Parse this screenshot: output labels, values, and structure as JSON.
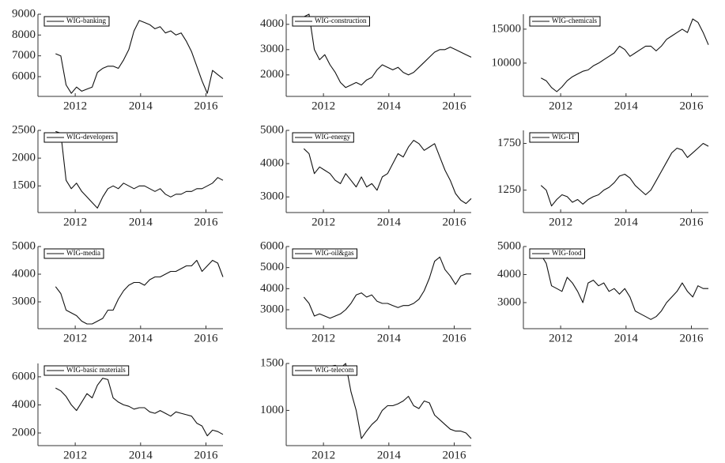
{
  "chart_data": [
    {
      "type": "line",
      "x": [
        2011.4,
        2011.56,
        2011.72,
        2011.88,
        2012.04,
        2012.2,
        2012.36,
        2012.52,
        2012.68,
        2012.84,
        2013.0,
        2013.16,
        2013.32,
        2013.48,
        2013.64,
        2013.8,
        2013.96,
        2014.12,
        2014.28,
        2014.44,
        2014.6,
        2014.76,
        2014.92,
        2015.08,
        2015.24,
        2015.4,
        2015.56,
        2015.72,
        2015.88,
        2016.04,
        2016.2,
        2016.36,
        2016.52
      ],
      "series": [
        {
          "name": "WIG-banking",
          "color": "#111111",
          "values": [
            7100,
            7000,
            5600,
            5200,
            5500,
            5300,
            5400,
            5500,
            6200,
            6400,
            6500,
            6500,
            6400,
            6800,
            7300,
            8200,
            8700,
            8600,
            8500,
            8300,
            8400,
            8100,
            8200,
            8000,
            8100,
            7700,
            7200,
            6500,
            5800,
            5200,
            6300,
            6100,
            5900
          ]
        }
      ],
      "xlim": [
        2010.86,
        2016.52
      ],
      "ylim": [
        5050,
        9000
      ],
      "xticks": [
        2012,
        2014,
        2016
      ],
      "yticks": [
        6000,
        7000,
        8000,
        9000
      ]
    },
    {
      "type": "line",
      "x": [
        2011.4,
        2011.56,
        2011.72,
        2011.88,
        2012.04,
        2012.2,
        2012.36,
        2012.52,
        2012.68,
        2012.84,
        2013.0,
        2013.16,
        2013.32,
        2013.48,
        2013.64,
        2013.8,
        2013.96,
        2014.12,
        2014.28,
        2014.44,
        2014.6,
        2014.76,
        2014.92,
        2015.08,
        2015.24,
        2015.4,
        2015.56,
        2015.72,
        2015.88,
        2016.04,
        2016.2,
        2016.36,
        2016.52
      ],
      "series": [
        {
          "name": "WIG-construction",
          "color": "#111111",
          "values": [
            4300,
            4400,
            3000,
            2600,
            2800,
            2400,
            2100,
            1700,
            1500,
            1600,
            1700,
            1600,
            1800,
            1900,
            2200,
            2400,
            2300,
            2200,
            2300,
            2100,
            2000,
            2100,
            2300,
            2500,
            2700,
            2900,
            3000,
            3000,
            3100,
            3000,
            2900,
            2800,
            2700
          ]
        }
      ],
      "xlim": [
        2010.86,
        2016.52
      ],
      "ylim": [
        1150,
        4400
      ],
      "xticks": [
        2012,
        2014,
        2016
      ],
      "yticks": [
        2000,
        3000,
        4000
      ]
    },
    {
      "type": "line",
      "x": [
        2011.4,
        2011.56,
        2011.72,
        2011.88,
        2012.04,
        2012.2,
        2012.36,
        2012.52,
        2012.68,
        2012.84,
        2013.0,
        2013.16,
        2013.32,
        2013.48,
        2013.64,
        2013.8,
        2013.96,
        2014.12,
        2014.28,
        2014.44,
        2014.6,
        2014.76,
        2014.92,
        2015.08,
        2015.24,
        2015.4,
        2015.56,
        2015.72,
        2015.88,
        2016.04,
        2016.2,
        2016.36,
        2016.52
      ],
      "series": [
        {
          "name": "WIG-chemicals",
          "color": "#111111",
          "values": [
            7800,
            7400,
            6400,
            5800,
            6500,
            7400,
            8000,
            8400,
            8800,
            9000,
            9600,
            10000,
            10500,
            11000,
            11500,
            12500,
            12000,
            11000,
            11500,
            12000,
            12500,
            12500,
            11800,
            12500,
            13500,
            14000,
            14500,
            15000,
            14500,
            16500,
            16000,
            14500,
            12700
          ]
        }
      ],
      "xlim": [
        2010.86,
        2016.52
      ],
      "ylim": [
        5100,
        17200
      ],
      "xticks": [
        2012,
        2014,
        2016
      ],
      "yticks": [
        10000,
        15000
      ]
    },
    {
      "type": "line",
      "x": [
        2011.4,
        2011.56,
        2011.72,
        2011.88,
        2012.04,
        2012.2,
        2012.36,
        2012.52,
        2012.68,
        2012.84,
        2013.0,
        2013.16,
        2013.32,
        2013.48,
        2013.64,
        2013.8,
        2013.96,
        2014.12,
        2014.28,
        2014.44,
        2014.6,
        2014.76,
        2014.92,
        2015.08,
        2015.24,
        2015.4,
        2015.56,
        2015.72,
        2015.88,
        2016.04,
        2016.2,
        2016.36,
        2016.52
      ],
      "series": [
        {
          "name": "WIG-developers",
          "color": "#111111",
          "values": [
            2480,
            2450,
            1600,
            1450,
            1550,
            1400,
            1300,
            1200,
            1100,
            1300,
            1450,
            1500,
            1450,
            1550,
            1500,
            1450,
            1500,
            1500,
            1450,
            1400,
            1450,
            1350,
            1300,
            1350,
            1350,
            1400,
            1400,
            1450,
            1450,
            1500,
            1550,
            1650,
            1600
          ]
        }
      ],
      "xlim": [
        2010.86,
        2016.52
      ],
      "ylim": [
        1020,
        2500
      ],
      "xticks": [
        2012,
        2014,
        2016
      ],
      "yticks": [
        1500,
        2000,
        2500
      ]
    },
    {
      "type": "line",
      "x": [
        2011.4,
        2011.56,
        2011.72,
        2011.88,
        2012.04,
        2012.2,
        2012.36,
        2012.52,
        2012.68,
        2012.84,
        2013.0,
        2013.16,
        2013.32,
        2013.48,
        2013.64,
        2013.8,
        2013.96,
        2014.12,
        2014.28,
        2014.44,
        2014.6,
        2014.76,
        2014.92,
        2015.08,
        2015.24,
        2015.4,
        2015.56,
        2015.72,
        2015.88,
        2016.04,
        2016.2,
        2016.36,
        2016.52
      ],
      "series": [
        {
          "name": "WIG-energy",
          "color": "#111111",
          "values": [
            4450,
            4300,
            3700,
            3900,
            3800,
            3700,
            3500,
            3400,
            3700,
            3500,
            3300,
            3600,
            3300,
            3400,
            3200,
            3600,
            3700,
            4000,
            4300,
            4200,
            4500,
            4700,
            4600,
            4400,
            4500,
            4600,
            4200,
            3800,
            3500,
            3100,
            2900,
            2800,
            2950
          ]
        }
      ],
      "xlim": [
        2010.86,
        2016.52
      ],
      "ylim": [
        2530,
        5000
      ],
      "xticks": [
        2012,
        2014,
        2016
      ],
      "yticks": [
        3000,
        4000,
        5000
      ]
    },
    {
      "type": "line",
      "x": [
        2011.4,
        2011.56,
        2011.72,
        2011.88,
        2012.04,
        2012.2,
        2012.36,
        2012.52,
        2012.68,
        2012.84,
        2013.0,
        2013.16,
        2013.32,
        2013.48,
        2013.64,
        2013.8,
        2013.96,
        2014.12,
        2014.28,
        2014.44,
        2014.6,
        2014.76,
        2014.92,
        2015.08,
        2015.24,
        2015.4,
        2015.56,
        2015.72,
        2015.88,
        2016.04,
        2016.2,
        2016.36,
        2016.52
      ],
      "series": [
        {
          "name": "WIG-IT",
          "color": "#111111",
          "values": [
            1300,
            1250,
            1080,
            1150,
            1200,
            1180,
            1120,
            1150,
            1100,
            1150,
            1180,
            1200,
            1250,
            1280,
            1330,
            1400,
            1420,
            1380,
            1300,
            1250,
            1200,
            1250,
            1350,
            1450,
            1550,
            1650,
            1700,
            1680,
            1600,
            1650,
            1700,
            1750,
            1720
          ]
        }
      ],
      "xlim": [
        2010.86,
        2016.52
      ],
      "ylim": [
        1010,
        1890
      ],
      "xticks": [
        2012,
        2014,
        2016
      ],
      "yticks": [
        1250,
        1750
      ]
    },
    {
      "type": "line",
      "x": [
        2011.4,
        2011.56,
        2011.72,
        2011.88,
        2012.04,
        2012.2,
        2012.36,
        2012.52,
        2012.68,
        2012.84,
        2013.0,
        2013.16,
        2013.32,
        2013.48,
        2013.64,
        2013.8,
        2013.96,
        2014.12,
        2014.28,
        2014.44,
        2014.6,
        2014.76,
        2014.92,
        2015.08,
        2015.24,
        2015.4,
        2015.56,
        2015.72,
        2015.88,
        2016.04,
        2016.2,
        2016.36,
        2016.52
      ],
      "series": [
        {
          "name": "WIG-media",
          "color": "#111111",
          "values": [
            3550,
            3300,
            2700,
            2600,
            2500,
            2300,
            2200,
            2200,
            2300,
            2400,
            2700,
            2700,
            3100,
            3400,
            3600,
            3700,
            3700,
            3600,
            3800,
            3900,
            3900,
            4000,
            4100,
            4100,
            4200,
            4300,
            4300,
            4500,
            4100,
            4300,
            4500,
            4400,
            3900
          ]
        }
      ],
      "xlim": [
        2010.86,
        2016.52
      ],
      "ylim": [
        2030,
        5000
      ],
      "xticks": [
        2012,
        2014,
        2016
      ],
      "yticks": [
        3000,
        4000,
        5000
      ]
    },
    {
      "type": "line",
      "x": [
        2011.4,
        2011.56,
        2011.72,
        2011.88,
        2012.04,
        2012.2,
        2012.36,
        2012.52,
        2012.68,
        2012.84,
        2013.0,
        2013.16,
        2013.32,
        2013.48,
        2013.64,
        2013.8,
        2013.96,
        2014.12,
        2014.28,
        2014.44,
        2014.6,
        2014.76,
        2014.92,
        2015.08,
        2015.24,
        2015.4,
        2015.56,
        2015.72,
        2015.88,
        2016.04,
        2016.2,
        2016.36,
        2016.52
      ],
      "series": [
        {
          "name": "WIG-oil&gas",
          "color": "#111111",
          "values": [
            3600,
            3300,
            2700,
            2800,
            2700,
            2600,
            2700,
            2800,
            3000,
            3300,
            3700,
            3800,
            3600,
            3700,
            3400,
            3300,
            3300,
            3200,
            3100,
            3200,
            3200,
            3300,
            3500,
            3900,
            4500,
            5300,
            5500,
            4900,
            4600,
            4200,
            4600,
            4700,
            4700
          ]
        }
      ],
      "xlim": [
        2010.86,
        2016.52
      ],
      "ylim": [
        2100,
        6000
      ],
      "xticks": [
        2012,
        2014,
        2016
      ],
      "yticks": [
        3000,
        4000,
        5000,
        6000
      ]
    },
    {
      "type": "line",
      "x": [
        2011.4,
        2011.56,
        2011.72,
        2011.88,
        2012.04,
        2012.2,
        2012.36,
        2012.52,
        2012.68,
        2012.84,
        2013.0,
        2013.16,
        2013.32,
        2013.48,
        2013.64,
        2013.8,
        2013.96,
        2014.12,
        2014.28,
        2014.44,
        2014.6,
        2014.76,
        2014.92,
        2015.08,
        2015.24,
        2015.4,
        2015.56,
        2015.72,
        2015.88,
        2016.04,
        2016.2,
        2016.36,
        2016.52
      ],
      "series": [
        {
          "name": "WIG-food",
          "color": "#111111",
          "values": [
            4700,
            4400,
            3600,
            3500,
            3400,
            3900,
            3700,
            3400,
            3000,
            3700,
            3800,
            3600,
            3700,
            3400,
            3500,
            3300,
            3500,
            3200,
            2700,
            2600,
            2500,
            2400,
            2500,
            2700,
            3000,
            3200,
            3400,
            3700,
            3400,
            3200,
            3600,
            3500,
            3500
          ]
        }
      ],
      "xlim": [
        2010.86,
        2016.52
      ],
      "ylim": [
        2070,
        5000
      ],
      "xticks": [
        2012,
        2014,
        2016
      ],
      "yticks": [
        3000,
        4000,
        5000
      ]
    },
    {
      "type": "line",
      "x": [
        2011.4,
        2011.56,
        2011.72,
        2011.88,
        2012.04,
        2012.2,
        2012.36,
        2012.52,
        2012.68,
        2012.84,
        2013.0,
        2013.16,
        2013.32,
        2013.48,
        2013.64,
        2013.8,
        2013.96,
        2014.12,
        2014.28,
        2014.44,
        2014.6,
        2014.76,
        2014.92,
        2015.08,
        2015.24,
        2015.4,
        2015.56,
        2015.72,
        2015.88,
        2016.04,
        2016.2,
        2016.36,
        2016.52
      ],
      "series": [
        {
          "name": "WIG-basic materials",
          "color": "#111111",
          "values": [
            5200,
            5000,
            4600,
            4000,
            3600,
            4200,
            4800,
            4500,
            5400,
            5900,
            5800,
            4500,
            4200,
            4000,
            3900,
            3700,
            3800,
            3800,
            3500,
            3400,
            3600,
            3400,
            3200,
            3500,
            3400,
            3300,
            3200,
            2700,
            2500,
            1800,
            2200,
            2100,
            1900
          ]
        }
      ],
      "xlim": [
        2010.86,
        2016.52
      ],
      "ylim": [
        1100,
        6950
      ],
      "xticks": [
        2012,
        2014,
        2016
      ],
      "yticks": [
        2000,
        4000,
        6000
      ]
    },
    {
      "type": "line",
      "x": [
        2011.4,
        2011.56,
        2011.72,
        2011.88,
        2012.04,
        2012.2,
        2012.36,
        2012.52,
        2012.68,
        2012.84,
        2013.0,
        2013.16,
        2013.32,
        2013.48,
        2013.64,
        2013.8,
        2013.96,
        2014.12,
        2014.28,
        2014.44,
        2014.6,
        2014.76,
        2014.92,
        2015.08,
        2015.24,
        2015.4,
        2015.56,
        2015.72,
        2015.88,
        2016.04,
        2016.2,
        2016.36,
        2016.52
      ],
      "series": [
        {
          "name": "WIG-telecom",
          "color": "#111111",
          "values": [
            1380,
            1400,
            1380,
            1420,
            1450,
            1470,
            1480,
            1450,
            1500,
            1200,
            1000,
            700,
            780,
            850,
            900,
            1000,
            1050,
            1050,
            1070,
            1100,
            1150,
            1050,
            1020,
            1100,
            1080,
            950,
            900,
            850,
            800,
            780,
            780,
            760,
            700
          ]
        }
      ],
      "xlim": [
        2010.86,
        2016.52
      ],
      "ylim": [
        625,
        1500
      ],
      "xticks": [
        2012,
        2014,
        2016
      ],
      "yticks": [
        1000,
        1500
      ]
    }
  ]
}
